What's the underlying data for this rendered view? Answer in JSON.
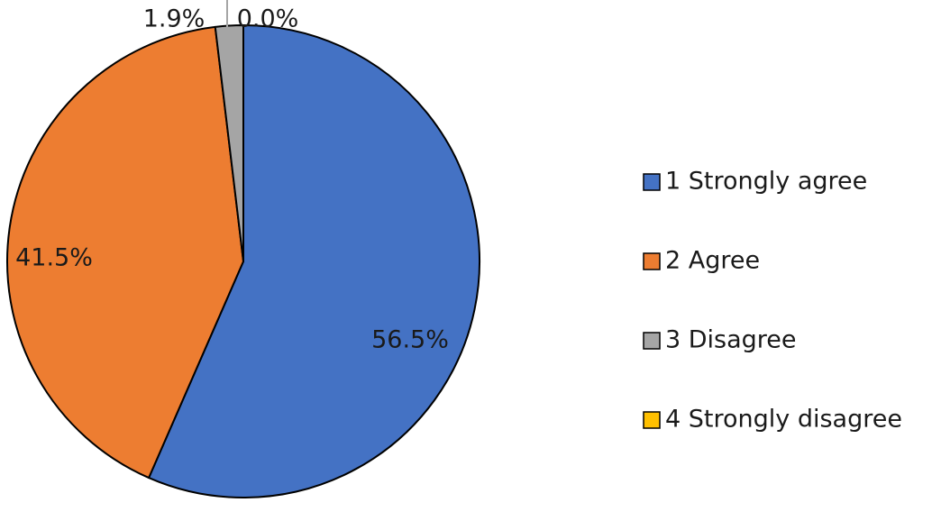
{
  "chart_data": {
    "type": "pie",
    "title": "",
    "categories": [
      "1 Strongly agree",
      "2 Agree",
      "3 Disagree",
      "4 Strongly disagree"
    ],
    "values": [
      56.5,
      41.5,
      1.9,
      0.0
    ],
    "labels": [
      "56.5%",
      "41.5%",
      "1.9%",
      "0.0%"
    ],
    "colors": [
      "#4472C4",
      "#ED7D31",
      "#A5A5A5",
      "#FFC000"
    ],
    "start_angle_deg": 0,
    "direction": "clockwise",
    "legend_position": "right"
  }
}
